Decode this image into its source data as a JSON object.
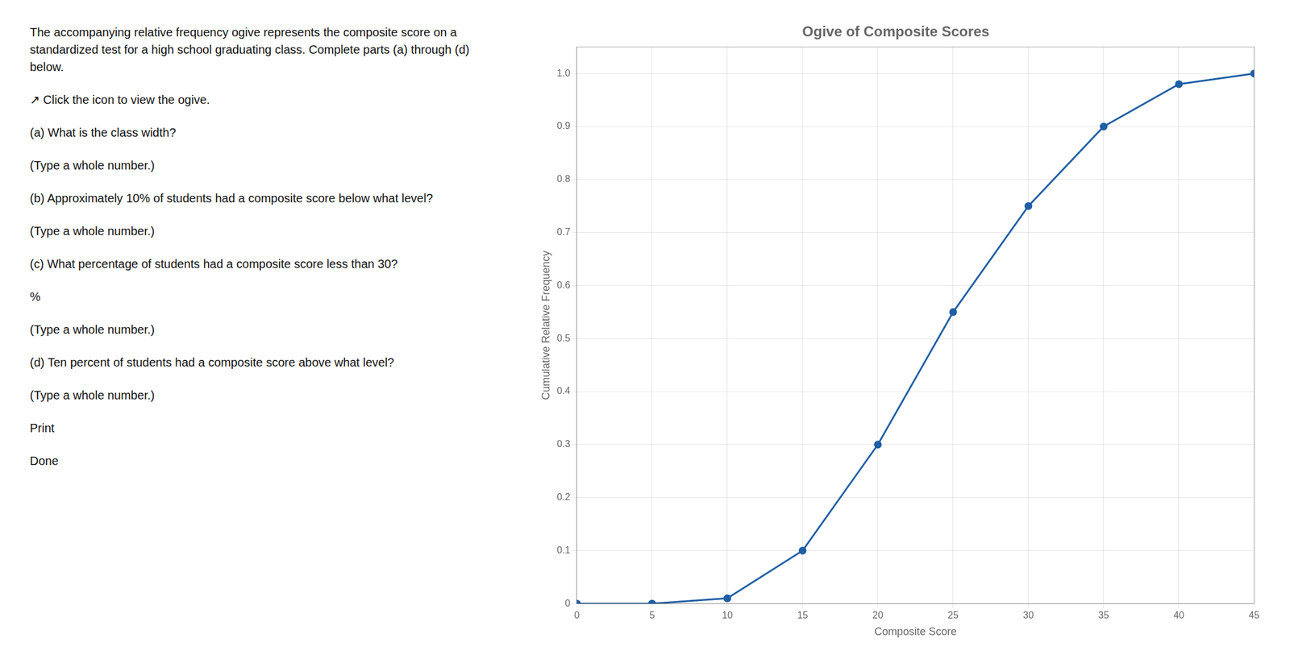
{
  "chart_data": {
    "type": "line",
    "title": "Ogive of Composite Scores",
    "x_label": "Composite Score",
    "y_label": "Cumulative Relative Frequency",
    "x": [
      0,
      5,
      10,
      15,
      20,
      25,
      30,
      35,
      40,
      45
    ],
    "series": [
      {
        "name": "Cumulative Relative Frequency",
        "color": "#1f5fa6",
        "marker": "circle",
        "values": [
          0.0,
          0.0,
          0.01,
          0.1,
          0.3,
          0.55,
          0.75,
          0.9,
          0.98,
          1.0
        ]
      }
    ],
    "xlim": [
      0,
      45
    ],
    "ylim": [
      0,
      1.05
    ],
    "xticks": [
      0,
      5,
      10,
      15,
      20,
      25,
      30,
      35,
      40,
      45
    ],
    "yticks": [
      0,
      0.1,
      0.2,
      0.3,
      0.4,
      0.5,
      0.6,
      0.7,
      0.8,
      0.9,
      {
        "value": 1,
        "label": "1.0"
      }
    ],
    "grid": true,
    "annotations": [
      "The accompanying relative frequency ogive represents the composite score on a standardized test for a high school graduating class. Complete parts (a) through (d) below.",
      "↗ Click the icon to view the ogive.",
      "(a) What is the class width?",
      "(Type a whole number.)",
      "(b) Approximately 10% of students had a composite score below what level?",
      "(Type a whole number.)",
      "(c) What percentage of students had a composite score less than 30?",
      "%",
      "(Type a whole number.)",
      "(d) Ten percent of students had a composite score above what level?",
      "(Type a whole number.)",
      "Print",
      "Done"
    ]
  }
}
